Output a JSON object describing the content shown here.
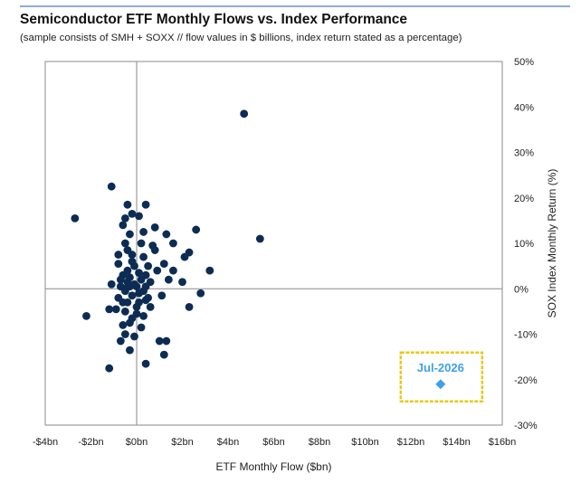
{
  "title": "Semiconductor ETF Monthly Flows vs. Index Performance",
  "subtitle": "(sample consists of SMH + SOXX // flow values in $ billions, index return stated as a percentage)",
  "colors": {
    "points": "#0d2c54",
    "highlight": "#3da0ea",
    "callout_border": "#e8c81a",
    "axes": "#8a8a8a",
    "top_rule": "#8ea9d6"
  },
  "chart_data": {
    "type": "scatter",
    "title": "Semiconductor ETF Monthly Flows vs. Index Performance",
    "subtitle": "(sample consists of SMH + SOXX // flow values in $ billions, index return stated as a percentage)",
    "xlabel": "ETF Monthly Flow ($bn)",
    "ylabel": "SOX Index Monthly Return (%)",
    "xlim": [
      -4,
      16
    ],
    "ylim": [
      -30,
      50
    ],
    "x_ticks": [
      "-$4bn",
      "-$2bn",
      "$0bn",
      "$2bn",
      "$4bn",
      "$6bn",
      "$8bn",
      "$10bn",
      "$12bn",
      "$14bn",
      "$16bn"
    ],
    "y_ticks": [
      "-30%",
      "-20%",
      "-10%",
      "0%",
      "10%",
      "20%",
      "30%",
      "40%",
      "50%"
    ],
    "y_axis_position": "right",
    "grid": false,
    "series": [
      {
        "points": [
          [
            4.7,
            38.5
          ],
          [
            5.4,
            11.0
          ],
          [
            -1.1,
            22.5
          ],
          [
            -2.7,
            15.5
          ],
          [
            -0.4,
            18.5
          ],
          [
            0.4,
            18.5
          ],
          [
            -0.2,
            16.5
          ],
          [
            0.1,
            16.0
          ],
          [
            -0.5,
            15.5
          ],
          [
            0.8,
            13.5
          ],
          [
            -0.6,
            14.0
          ],
          [
            2.6,
            13.0
          ],
          [
            1.3,
            12.0
          ],
          [
            -0.3,
            12.0
          ],
          [
            0.3,
            12.5
          ],
          [
            1.6,
            10.0
          ],
          [
            0.7,
            9.5
          ],
          [
            -0.5,
            10.0
          ],
          [
            0.2,
            10.0
          ],
          [
            2.3,
            8.0
          ],
          [
            3.2,
            4.0
          ],
          [
            2.1,
            7.0
          ],
          [
            0.8,
            8.5
          ],
          [
            -0.8,
            7.5
          ],
          [
            -0.4,
            8.5
          ],
          [
            0.3,
            7.0
          ],
          [
            1.2,
            5.5
          ],
          [
            -0.8,
            5.5
          ],
          [
            -0.2,
            6.0
          ],
          [
            0.5,
            5.0
          ],
          [
            0.9,
            4.0
          ],
          [
            1.6,
            4.0
          ],
          [
            -0.6,
            3.0
          ],
          [
            0.1,
            3.5
          ],
          [
            1.4,
            2.0
          ],
          [
            2.0,
            1.5
          ],
          [
            -0.3,
            2.5
          ],
          [
            0.6,
            1.5
          ],
          [
            -1.1,
            1.0
          ],
          [
            -0.7,
            0.5
          ],
          [
            0.0,
            0.5
          ],
          [
            -0.5,
            -0.5
          ],
          [
            0.3,
            -0.5
          ],
          [
            -0.2,
            -1.5
          ],
          [
            1.1,
            -1.5
          ],
          [
            -0.8,
            -2.0
          ],
          [
            0.4,
            -2.5
          ],
          [
            2.8,
            -1.0
          ],
          [
            -0.4,
            -3.0
          ],
          [
            0.1,
            -3.0
          ],
          [
            -1.2,
            -4.5
          ],
          [
            -0.9,
            -4.5
          ],
          [
            0.6,
            -4.0
          ],
          [
            -0.5,
            -5.0
          ],
          [
            0.0,
            -5.5
          ],
          [
            2.3,
            -4.0
          ],
          [
            -2.2,
            -6.0
          ],
          [
            -0.3,
            -7.5
          ],
          [
            -0.6,
            -8.0
          ],
          [
            0.2,
            -8.5
          ],
          [
            -0.5,
            -10.0
          ],
          [
            -0.1,
            -10.5
          ],
          [
            1.0,
            -11.5
          ],
          [
            1.3,
            -11.5
          ],
          [
            -0.7,
            -11.5
          ],
          [
            -0.3,
            -13.5
          ],
          [
            1.2,
            -14.5
          ],
          [
            0.4,
            -16.5
          ],
          [
            -1.2,
            -17.5
          ],
          [
            -0.5,
            0.0
          ],
          [
            -0.7,
            2.0
          ],
          [
            -0.1,
            1.0
          ],
          [
            0.2,
            2.0
          ],
          [
            -0.4,
            4.0
          ],
          [
            -0.1,
            5.0
          ],
          [
            0.4,
            3.0
          ],
          [
            -0.2,
            7.5
          ],
          [
            0.1,
            -1.0
          ],
          [
            0.4,
            0.5
          ],
          [
            -0.3,
            0.5
          ],
          [
            0.5,
            -2.0
          ],
          [
            -0.6,
            -3.0
          ],
          [
            0.0,
            -4.0
          ],
          [
            -0.2,
            -6.5
          ],
          [
            0.3,
            -6.0
          ],
          [
            -0.4,
            1.5
          ]
        ]
      },
      {
        "name": "Jul-2026",
        "marker": "diamond",
        "points": [
          [
            13.3,
            -21.0
          ]
        ]
      }
    ],
    "annotations": [
      {
        "text": "Jul-2026",
        "target_series": 1,
        "style": "boxed callout"
      }
    ]
  }
}
